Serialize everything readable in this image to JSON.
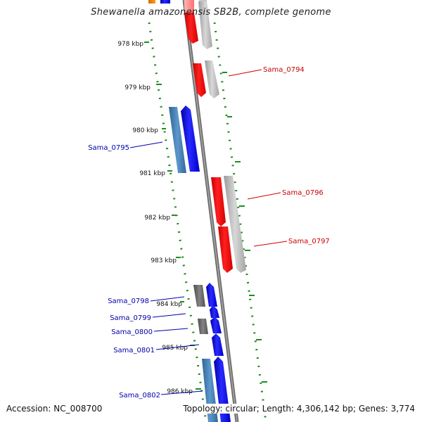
{
  "title": "Shewanella amazonensis SB2B, complete genome",
  "footer": {
    "accession": "Accession: NC_008700",
    "summary": "Topology: circular; Length: 4,306,142 bp; Genes: 3,774"
  },
  "colors": {
    "backbone": "#7f7f7f",
    "gc_ticks": "#1e8c1e",
    "forward_cds": "#0000ff",
    "forward_gene": "#4a88c0",
    "reverse_cds": "#ff0000",
    "reverse_gene": "#b8b8b8",
    "forward_label": "#0000aa",
    "reverse_label": "#cc0000",
    "misc_gene": "#707070"
  },
  "kbp_labels": [
    "978 kbp",
    "979 kbp",
    "980 kbp",
    "981 kbp",
    "982 kbp",
    "983 kbp",
    "984 kbp",
    "985 kbp",
    "986 kbp"
  ],
  "reverse_labels": [
    "Sama_0794",
    "Sama_0796",
    "Sama_0797"
  ],
  "forward_labels": [
    "Sama_0795",
    "Sama_0798",
    "Sama_0799",
    "Sama_0800",
    "Sama_0801",
    "Sama_0802"
  ]
}
